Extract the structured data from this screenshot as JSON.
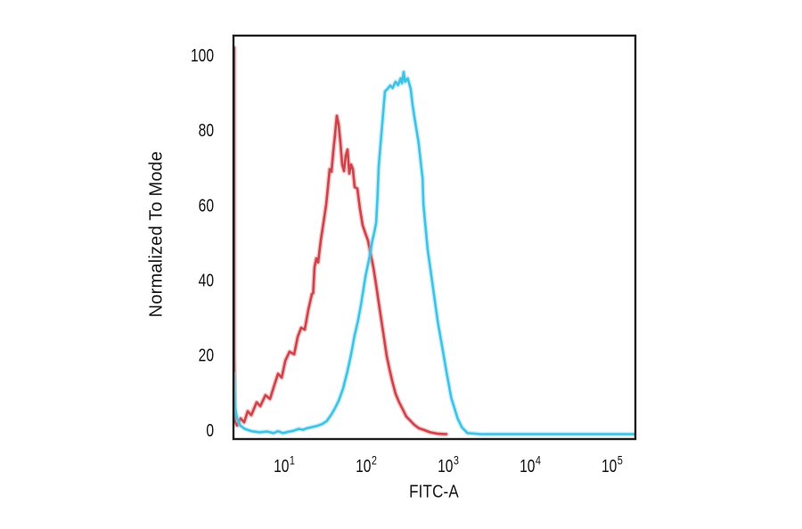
{
  "figure": {
    "background": "#ffffff",
    "border_color": "#1d1d1d"
  },
  "chart_data": {
    "type": "line",
    "subtype": "flow-cytometry-histogram-overlay",
    "title": "",
    "xlabel": "FITC-A",
    "ylabel": "Normalized To Mode",
    "x_scale": "log",
    "y_scale": "linear",
    "xlim": [
      2.4,
      192000
    ],
    "ylim": [
      -2.4,
      105.2
    ],
    "grid": false,
    "legend": false,
    "tick_color": "#111111",
    "x_ticks": [
      {
        "value": 10,
        "base": "10",
        "exponent": "1"
      },
      {
        "value": 100,
        "base": "10",
        "exponent": "2"
      },
      {
        "value": 1000,
        "base": "10",
        "exponent": "3"
      },
      {
        "value": 10000,
        "base": "10",
        "exponent": "4"
      },
      {
        "value": 100000,
        "base": "10",
        "exponent": "5"
      }
    ],
    "y_ticks": [
      {
        "value": 0,
        "label": "0"
      },
      {
        "value": 20,
        "label": "20"
      },
      {
        "value": 40,
        "label": "40"
      },
      {
        "value": 60,
        "label": "60"
      },
      {
        "value": 80,
        "label": "80"
      },
      {
        "value": 100,
        "label": "100"
      }
    ],
    "series": [
      {
        "name": "red-curve",
        "color": "#cf4249",
        "halo": "rgba(223,120,126,0.40)",
        "points": [
          [
            2.45,
            102
          ],
          [
            2.45,
            20
          ],
          [
            2.5,
            2.5
          ],
          [
            2.65,
            1.2
          ],
          [
            2.93,
            3.1
          ],
          [
            3.24,
            2.1
          ],
          [
            3.58,
            5
          ],
          [
            3.96,
            4
          ],
          [
            4.6,
            7.4
          ],
          [
            5.1,
            6.4
          ],
          [
            5.9,
            9.3
          ],
          [
            6.7,
            8.3
          ],
          [
            7.6,
            12.1
          ],
          [
            8.4,
            15
          ],
          [
            9.3,
            14
          ],
          [
            10.3,
            18.5
          ],
          [
            11.6,
            20.9
          ],
          [
            13.2,
            20.2
          ],
          [
            14.6,
            24.9
          ],
          [
            16.1,
            27.3
          ],
          [
            17.8,
            26.8
          ],
          [
            19.6,
            32
          ],
          [
            21.7,
            36.3
          ],
          [
            22.5,
            36.5
          ],
          [
            23.4,
            43.5
          ],
          [
            24.6,
            45.8
          ],
          [
            25.9,
            44.7
          ],
          [
            27.9,
            50.6
          ],
          [
            30.1,
            55.3
          ],
          [
            32.4,
            60.1
          ],
          [
            34.1,
            64.8
          ],
          [
            35.8,
            69.6
          ],
          [
            37.7,
            68.9
          ],
          [
            39.6,
            74.3
          ],
          [
            41.7,
            79.1
          ],
          [
            43.8,
            83.8
          ],
          [
            46,
            81.5
          ],
          [
            48.4,
            76.7
          ],
          [
            50.9,
            70.8
          ],
          [
            53.5,
            69.1
          ],
          [
            56.2,
            73.2
          ],
          [
            59.1,
            74.8
          ],
          [
            62.1,
            68.4
          ],
          [
            65.3,
            70.8
          ],
          [
            68.7,
            69.6
          ],
          [
            72.3,
            64.8
          ],
          [
            77.8,
            64.4
          ],
          [
            83.9,
            58.9
          ],
          [
            90.5,
            54.6
          ],
          [
            97.5,
            52.5
          ],
          [
            105,
            50.6
          ],
          [
            113,
            47
          ],
          [
            122,
            43.5
          ],
          [
            132,
            38.7
          ],
          [
            142,
            34
          ],
          [
            153,
            29.2
          ],
          [
            165,
            24.5
          ],
          [
            178,
            19.7
          ],
          [
            192,
            16.2
          ],
          [
            207,
            13.1
          ],
          [
            228,
            9.7
          ],
          [
            252,
            7.4
          ],
          [
            279,
            5.5
          ],
          [
            308,
            3.6
          ],
          [
            341,
            2.6
          ],
          [
            386,
            1.4
          ],
          [
            438,
            0.5
          ],
          [
            509,
            0
          ],
          [
            600,
            -0.6
          ],
          [
            750,
            -1
          ],
          [
            950,
            -1.1
          ]
        ]
      },
      {
        "name": "cyan-curve",
        "color": "#3ec3e6",
        "halo": "rgba(130,216,238,0.40)",
        "points": [
          [
            2.45,
            15
          ],
          [
            2.5,
            6
          ],
          [
            2.65,
            3.1
          ],
          [
            2.9,
            1.2
          ],
          [
            3.3,
            0.3
          ],
          [
            4,
            -0.3
          ],
          [
            5,
            -0.6
          ],
          [
            6.2,
            -0.4
          ],
          [
            7.4,
            -0.8
          ],
          [
            8.4,
            -0.3
          ],
          [
            9.6,
            -0.8
          ],
          [
            11,
            -0.5
          ],
          [
            13,
            -0.2
          ],
          [
            15,
            0.3
          ],
          [
            17,
            0.1
          ],
          [
            19,
            0.5
          ],
          [
            22,
            0.8
          ],
          [
            25,
            1.1
          ],
          [
            29,
            1.6
          ],
          [
            33,
            2.4
          ],
          [
            38,
            4.3
          ],
          [
            42,
            6
          ],
          [
            46,
            7.8
          ],
          [
            52,
            11
          ],
          [
            59,
            15.7
          ],
          [
            65,
            20
          ],
          [
            72,
            25.2
          ],
          [
            79,
            29
          ],
          [
            86,
            33.3
          ],
          [
            98,
            41.1
          ],
          [
            110,
            46.3
          ],
          [
            119,
            50.6
          ],
          [
            126,
            53
          ],
          [
            132,
            55.3
          ],
          [
            137,
            62
          ],
          [
            142,
            70.3
          ],
          [
            153,
            79
          ],
          [
            169,
            90.3
          ],
          [
            182,
            91
          ],
          [
            196,
            91.9
          ],
          [
            210,
            91.2
          ],
          [
            228,
            92.9
          ],
          [
            245,
            92
          ],
          [
            262,
            93.8
          ],
          [
            273,
            92.5
          ],
          [
            286,
            95.5
          ],
          [
            298,
            92.9
          ],
          [
            320,
            93.8
          ],
          [
            349,
            91
          ],
          [
            367,
            86.9
          ],
          [
            385,
            83.8
          ],
          [
            400,
            81.5
          ],
          [
            435,
            76.7
          ],
          [
            486,
            67.2
          ],
          [
            499,
            60.1
          ],
          [
            561,
            48.2
          ],
          [
            668,
            36.3
          ],
          [
            751,
            28.5
          ],
          [
            846,
            22.1
          ],
          [
            962,
            15
          ],
          [
            1090,
            8.6
          ],
          [
            1300,
            3.1
          ],
          [
            1470,
            0.7
          ],
          [
            1720,
            -0.8
          ],
          [
            2500,
            -1.1
          ],
          [
            6000,
            -1.1
          ],
          [
            20000,
            -1.1
          ],
          [
            80000,
            -1.1
          ],
          [
            185000,
            -1.1
          ]
        ]
      }
    ]
  }
}
